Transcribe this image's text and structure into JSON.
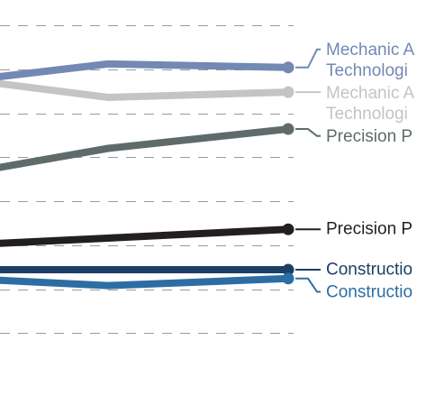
{
  "chart_data": {
    "type": "line",
    "title": "",
    "xlabel": "",
    "ylabel": "",
    "grid": true,
    "x": [
      0,
      1,
      2
    ],
    "ylim": [
      0,
      10
    ],
    "yticks": [
      1.25,
      2.5,
      3.75,
      5,
      6.25,
      7.5,
      8.75,
      10
    ],
    "series": [
      {
        "label_lines": [
          "Mechanic A",
          "Technologi"
        ],
        "values": [
          8.3,
          8.9,
          8.8
        ],
        "color": "#7189b3"
      },
      {
        "label_lines": [
          "Mechanic A",
          "Technologi"
        ],
        "values": [
          8.6,
          7.95,
          8.1
        ],
        "color": "#c4c4c4"
      },
      {
        "label_lines": [
          "Precision P"
        ],
        "values": [
          5.6,
          6.5,
          7.05
        ],
        "color": "#5f6b6b"
      },
      {
        "label_lines": [
          "Precision P"
        ],
        "values": [
          3.7,
          3.95,
          4.2
        ],
        "color": "#231f20"
      },
      {
        "label_lines": [
          "Constructio"
        ],
        "values": [
          3.05,
          3.05,
          3.05
        ],
        "color": "#1d3f66"
      },
      {
        "label_lines": [
          "Constructio"
        ],
        "values": [
          2.85,
          2.6,
          2.8
        ],
        "color": "#2c6ea3"
      }
    ]
  }
}
